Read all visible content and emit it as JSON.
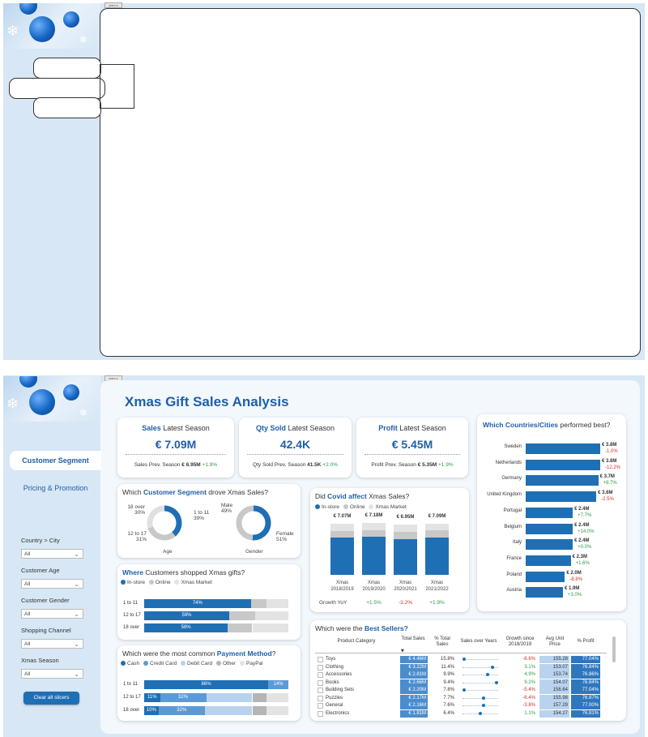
{
  "screens": [
    {
      "tiny_tab": "prev-s"
    },
    {
      "tiny_tab": "prev-s"
    }
  ],
  "report": {
    "title": "Xmas Gift Sales Analysis",
    "nav": {
      "active": "Customer Segment",
      "other": "Pricing & Promotion"
    },
    "slicers": [
      {
        "label": "Country > City",
        "value": "All"
      },
      {
        "label": "Customer Age",
        "value": "All"
      },
      {
        "label": "Customer Gender",
        "value": "All"
      },
      {
        "label": "Shopping Channel",
        "value": "All"
      },
      {
        "label": "Xmas Season",
        "value": "All"
      }
    ],
    "clear_button": "Clear all slicers",
    "kpis": [
      {
        "title_bold": "Sales",
        "title_rest": " Latest Season",
        "value": "€ 7.09M",
        "foot_label": "Sales Prev. Season ",
        "foot_value": "€ 6.95M",
        "foot_delta": "+1.9%"
      },
      {
        "title_bold": "Qty Sold",
        "title_rest": " Latest Season",
        "value": "42.4K",
        "foot_label": "Qty Sold Prev. Season ",
        "foot_value": "41.5K",
        "foot_delta": "+2.0%"
      },
      {
        "title_bold": "Profit",
        "title_rest": " Latest Season",
        "value": "€ 5.45M",
        "foot_label": "Profit Prev. Season ",
        "foot_value": "€ 5.35M",
        "foot_delta": "+1.9%"
      }
    ],
    "segment": {
      "title_pre": "Which ",
      "title_bold": "Customer Segment",
      "title_post": " drove Xmas Sales?",
      "age": {
        "caption": "Age",
        "slices": [
          {
            "label": "1 to 11",
            "pct": "39%",
            "value": 39
          },
          {
            "label": "12 to 17",
            "pct": "31%",
            "value": 31
          },
          {
            "label": "18 over",
            "pct": "30%",
            "value": 30
          }
        ]
      },
      "gender": {
        "caption": "Gender",
        "slices": [
          {
            "label": "Female",
            "pct": "51%",
            "value": 51
          },
          {
            "label": "Male",
            "pct": "49%",
            "value": 49
          }
        ]
      }
    },
    "where": {
      "title_bold": "Where",
      "title_rest": " Customers shopped Xmas gifts?",
      "legend": [
        "In-store",
        "Online",
        "Xmas Market"
      ],
      "rows": [
        {
          "label": "1 to 11",
          "instore": 74,
          "online": 11,
          "market": 15,
          "text": "74%"
        },
        {
          "label": "12 to 17",
          "instore": 59,
          "online": 18,
          "market": 23,
          "text": "59%"
        },
        {
          "label": "18 over",
          "instore": 58,
          "online": 17,
          "market": 25,
          "text": "58%"
        }
      ]
    },
    "payment": {
      "title_pre": "Which were the most common ",
      "title_bold": "Payment Method",
      "title_post": "?",
      "legend": [
        "Cash",
        "Credit Card",
        "Debit Card",
        "Other",
        "PayPal"
      ],
      "rows": [
        {
          "label": "1 to 11",
          "segments": [
            86,
            14,
            0,
            0,
            0
          ],
          "texts": [
            "86%",
            "14%"
          ]
        },
        {
          "label": "12 to 17",
          "segments": [
            11,
            32,
            32,
            10,
            15
          ],
          "texts": [
            "11%",
            "32%"
          ]
        },
        {
          "label": "18 over",
          "segments": [
            10,
            32,
            33,
            10,
            15
          ],
          "texts": [
            "10%",
            "32%"
          ]
        }
      ]
    },
    "covid": {
      "title_pre": "Did ",
      "title_bold": "Covid affect",
      "title_post": " Xmas Sales?",
      "legend": [
        "In-store",
        "Online",
        "Xmas Market"
      ],
      "yoy_label": "Growth YoY",
      "bars": [
        {
          "total": "€ 7.07M",
          "line1": "Xmas",
          "line2": "2018/2019",
          "instore": 5.2,
          "online": 0.9,
          "market": 0.97,
          "yoy": ""
        },
        {
          "total": "€ 7.18M",
          "line1": "Xmas",
          "line2": "2019/2020",
          "instore": 5.3,
          "online": 0.93,
          "market": 0.95,
          "yoy": "+1.5%"
        },
        {
          "total": "€ 6.95M",
          "line1": "Xmas",
          "line2": "2020/2021",
          "instore": 5.0,
          "online": 1.0,
          "market": 0.95,
          "yoy": "-3.2%"
        },
        {
          "total": "€ 7.09M",
          "line1": "Xmas",
          "line2": "2021/2022",
          "instore": 5.2,
          "online": 0.95,
          "market": 0.94,
          "yoy": "+1.9%"
        }
      ]
    },
    "countries": {
      "title_bold": "Which Countries/Cities",
      "title_rest": " performed best?",
      "rows": [
        {
          "name": "Sweden",
          "value": 3.8,
          "label": "€ 3.8M",
          "delta": "-1.0%"
        },
        {
          "name": "Netherlands",
          "value": 3.8,
          "label": "€ 3.8M",
          "delta": "-12.2%"
        },
        {
          "name": "Germany",
          "value": 3.7,
          "label": "€ 3.7M",
          "delta": "+8.7%"
        },
        {
          "name": "United Kingdom",
          "value": 3.6,
          "label": "€ 3.6M",
          "delta": "-2.5%"
        },
        {
          "name": "Portugal",
          "value": 2.4,
          "label": "€ 2.4M",
          "delta": "+7.7%"
        },
        {
          "name": "Belgium",
          "value": 2.4,
          "label": "€ 2.4M",
          "delta": "+14.0%"
        },
        {
          "name": "Italy",
          "value": 2.4,
          "label": "€ 2.4M",
          "delta": "+0.0%"
        },
        {
          "name": "France",
          "value": 2.3,
          "label": "€ 2.3M",
          "delta": "+1.6%"
        },
        {
          "name": "Poland",
          "value": 2.0,
          "label": "€ 2.0M",
          "delta": "-8.8%"
        },
        {
          "name": "Austria",
          "value": 1.9,
          "label": "€ 1.9M",
          "delta": "+3.0%"
        }
      ]
    },
    "bestsellers": {
      "title_pre": "Which were the ",
      "title_bold": "Best Sellers?",
      "headers": [
        "Product Category",
        "Total Sales",
        "% Total Sales",
        "Sales over Years",
        "Growth since 2018/2019",
        "Avg Unit Price",
        "% Profit"
      ],
      "rows": [
        {
          "cat": "Toys",
          "sales": "€ 4.46M",
          "pct": "15.8%",
          "growth": "-8.6%",
          "price": "155.28",
          "profit": "77.04%",
          "dot": 0.05
        },
        {
          "cat": "Clothing",
          "sales": "€ 3.22M",
          "pct": "11.4%",
          "growth": "3.1%",
          "price": "153.07",
          "profit": "76.84%",
          "dot": 0.85
        },
        {
          "cat": "Accessories",
          "sales": "€ 2.81M",
          "pct": "9.9%",
          "growth": "4.9%",
          "price": "153.74",
          "profit": "76.86%",
          "dot": 0.7
        },
        {
          "cat": "Books",
          "sales": "€ 2.66M",
          "pct": "9.4%",
          "growth": "9.2%",
          "price": "154.07",
          "profit": "76.84%",
          "dot": 0.95
        },
        {
          "cat": "Building Sets",
          "sales": "€ 2.20M",
          "pct": "7.8%",
          "growth": "-5.4%",
          "price": "156.64",
          "profit": "77.04%",
          "dot": 0.05
        },
        {
          "cat": "Puzzles",
          "sales": "€ 2.17M",
          "pct": "7.7%",
          "growth": "-6.4%",
          "price": "155.98",
          "profit": "76.97%",
          "dot": 0.6
        },
        {
          "cat": "General",
          "sales": "€ 2.16M",
          "pct": "7.6%",
          "growth": "-3.8%",
          "price": "157.29",
          "profit": "77.00%",
          "dot": 0.6
        },
        {
          "cat": "Electronics",
          "sales": "€ 1.81M",
          "pct": "6.4%",
          "growth": "1.1%",
          "price": "154.27",
          "profit": "76.81%",
          "dot": 0.5
        }
      ]
    }
  },
  "colors": {
    "primary": "#1f6fb5",
    "online": "#c8c8c8",
    "market": "#e3e3e3",
    "title": "#1f5fa8",
    "panel": "#d7e7f5"
  }
}
